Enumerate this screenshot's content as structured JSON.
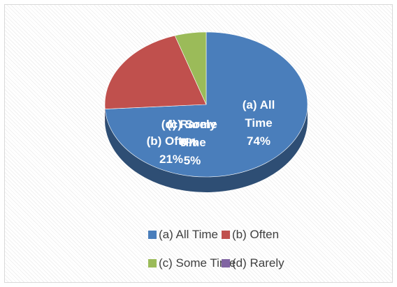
{
  "chart_data": {
    "type": "pie",
    "categories": [
      "(a) All Time",
      "(b) Often",
      "(c) Some Time",
      "(d) Rarely"
    ],
    "values": [
      74,
      21,
      5,
      0
    ],
    "value_labels": [
      "74%",
      "21%",
      "5%",
      "0%"
    ],
    "colors": [
      "#4a7ebb",
      "#c0504d",
      "#9bbb59",
      "#8064a2"
    ],
    "legend": "bottom"
  }
}
